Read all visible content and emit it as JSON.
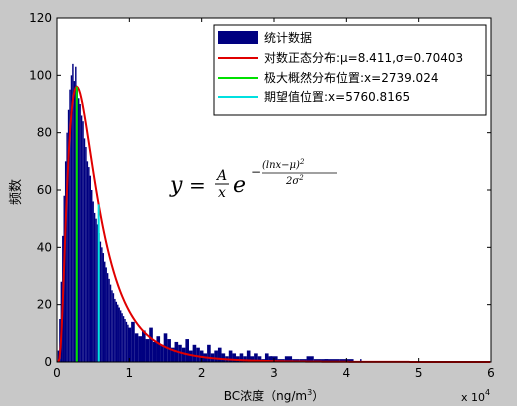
{
  "chart_data": {
    "type": "bar",
    "xlabel_main": "BC浓度（ng/m",
    "xlabel_sup": "3",
    "xlabel_end": "）",
    "ylabel": "频数",
    "xlim": [
      0,
      60000
    ],
    "ylim": [
      0,
      120
    ],
    "x_ticks": [
      0,
      10000,
      20000,
      30000,
      40000,
      50000,
      60000
    ],
    "x_tick_labels": [
      "0",
      "1",
      "2",
      "3",
      "4",
      "5",
      "6"
    ],
    "y_ticks": [
      0,
      20,
      40,
      60,
      80,
      100,
      120
    ],
    "y_tick_labels": [
      "0",
      "20",
      "40",
      "60",
      "80",
      "100",
      "120"
    ],
    "x_exponent_base": "x 10",
    "x_exponent_power": "4",
    "histogram": {
      "name": "统计数据",
      "color": "#000080",
      "bin_width": 200,
      "bins_x": [
        200,
        400,
        600,
        800,
        1000,
        1200,
        1400,
        1600,
        1800,
        2000,
        2200,
        2400,
        2600,
        2800,
        3000,
        3200,
        3400,
        3600,
        3800,
        4000,
        4200,
        4400,
        4600,
        4800,
        5000,
        5200,
        5400,
        5600,
        5800,
        6000,
        6200,
        6400,
        6600,
        6800,
        7000,
        7200,
        7400,
        7600,
        7800,
        8000,
        8200,
        8400,
        8600,
        8800,
        9000,
        9200,
        9400,
        9600,
        9800,
        10000,
        10500,
        11000,
        11500,
        12000,
        12500,
        13000,
        13500,
        14000,
        14500,
        15000,
        15500,
        16000,
        16500,
        17000,
        17500,
        18000,
        18500,
        19000,
        19500,
        20000,
        20500,
        21000,
        21500,
        22000,
        22500,
        23000,
        23500,
        24000,
        24500,
        25000,
        25500,
        26000,
        26500,
        27000,
        27500,
        28000,
        28500,
        29000,
        29500,
        30000,
        31000,
        32000,
        33000,
        34000,
        35000,
        36000,
        37000,
        38000,
        40000,
        42000
      ],
      "counts": [
        4,
        15,
        28,
        44,
        58,
        70,
        80,
        88,
        95,
        100,
        104,
        98,
        103,
        96,
        92,
        90,
        86,
        84,
        78,
        75,
        70,
        68,
        65,
        60,
        56,
        52,
        50,
        48,
        45,
        42,
        40,
        38,
        35,
        33,
        31,
        29,
        27,
        25,
        24,
        22,
        21,
        20,
        19,
        18,
        17,
        16,
        15,
        14,
        13,
        12,
        14,
        10,
        9,
        11,
        8,
        12,
        7,
        9,
        6,
        10,
        8,
        5,
        7,
        6,
        5,
        8,
        4,
        6,
        5,
        4,
        3,
        6,
        3,
        4,
        5,
        3,
        2,
        4,
        3,
        2,
        3,
        2,
        4,
        2,
        3,
        2,
        1,
        3,
        2,
        2,
        1,
        2,
        1,
        1,
        2,
        1,
        1,
        1,
        1,
        1
      ]
    },
    "series": [
      {
        "name": "对数正态分布:μ=8.411,σ=0.70403",
        "color": "#e00000",
        "type": "lognormal_fit",
        "mu": 8.411,
        "sigma": 0.70403,
        "scale": 96
      },
      {
        "name": "极大概然分布位置:x=2739.024",
        "color": "#00e000",
        "type": "vline",
        "x": 2739.024
      },
      {
        "name": "期望值位置:x=5760.8165",
        "color": "#00e0e0",
        "type": "vline",
        "x": 5760.8165
      }
    ],
    "legend_position": "top-right",
    "formula": {
      "y": "y",
      "eq": "=",
      "num": "A",
      "den": "x",
      "e": "e",
      "exp_num": "(lnx−μ)",
      "exp_num_sup": "2",
      "exp_den": "2σ",
      "exp_den_sup": "2",
      "exp_sign": "−"
    }
  }
}
